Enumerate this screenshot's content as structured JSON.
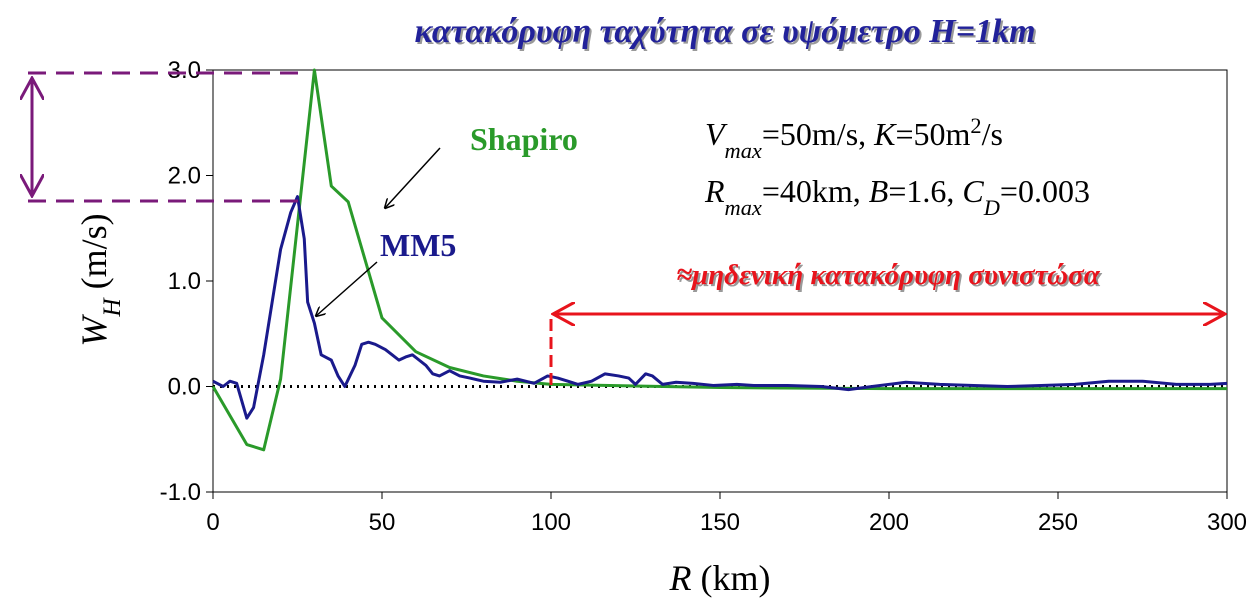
{
  "chart_data": {
    "type": "line",
    "title": "κατακόρυφη ταχύτητα σε υψόμετρο H=1km",
    "xlabel": [
      {
        "text": "R",
        "style": "italic"
      },
      {
        "text": " (km)",
        "style": "normal"
      }
    ],
    "ylabel": [
      {
        "text": "W",
        "style": "italic"
      },
      {
        "text": "H",
        "style": "sub-italic"
      },
      {
        "text": " (m/s)",
        "style": "normal"
      }
    ],
    "xlim": [
      0,
      300
    ],
    "ylim": [
      -1.0,
      3.0
    ],
    "xticks": [
      0,
      50,
      100,
      150,
      200,
      250,
      300
    ],
    "yticks": [
      {
        "value": -1,
        "label": "-1.0"
      },
      {
        "value": 0,
        "label": "0.0"
      },
      {
        "value": 1,
        "label": "1.0"
      },
      {
        "value": 2,
        "label": "2.0"
      },
      {
        "value": 3,
        "label": "3.0"
      }
    ],
    "reference_line": 0,
    "series": [
      {
        "name": "Shapiro",
        "color": "#2a9a2a",
        "x": [
          0,
          10,
          15,
          20,
          30,
          35,
          40,
          50,
          60,
          70,
          80,
          90,
          100,
          150,
          200,
          250,
          300
        ],
        "values": [
          0,
          -0.55,
          -0.6,
          0.07,
          3.0,
          1.9,
          1.75,
          0.65,
          0.33,
          0.18,
          0.1,
          0.05,
          0.02,
          -0.01,
          -0.02,
          -0.02,
          -0.02
        ]
      },
      {
        "name": "MM5",
        "color": "#1a1a8c",
        "x": [
          0,
          3,
          5,
          7,
          10,
          12,
          15,
          18,
          20,
          23,
          25,
          27,
          28,
          30,
          32,
          35,
          37,
          39,
          42,
          44,
          46,
          48,
          51,
          53,
          55,
          57,
          59,
          61,
          63,
          65,
          67,
          70,
          73,
          76,
          80,
          85,
          90,
          95,
          99,
          102,
          105,
          108,
          112,
          116,
          120,
          123,
          125,
          128,
          130,
          133,
          137,
          142,
          148,
          155,
          160,
          170,
          180,
          188,
          195,
          205,
          215,
          225,
          235,
          245,
          255,
          265,
          275,
          285,
          295,
          300
        ],
        "values": [
          0.05,
          0.0,
          0.05,
          0.03,
          -0.3,
          -0.2,
          0.3,
          0.9,
          1.3,
          1.65,
          1.8,
          1.4,
          0.8,
          0.6,
          0.3,
          0.25,
          0.1,
          0.0,
          0.2,
          0.4,
          0.42,
          0.4,
          0.35,
          0.3,
          0.25,
          0.28,
          0.3,
          0.25,
          0.2,
          0.12,
          0.1,
          0.15,
          0.1,
          0.08,
          0.05,
          0.04,
          0.07,
          0.03,
          0.1,
          0.08,
          0.05,
          0.02,
          0.05,
          0.12,
          0.1,
          0.08,
          0.02,
          0.12,
          0.1,
          0.02,
          0.04,
          0.03,
          0.01,
          0.02,
          0.01,
          0.01,
          0.0,
          -0.03,
          0.0,
          0.04,
          0.02,
          0.01,
          0.0,
          0.01,
          0.02,
          0.05,
          0.05,
          0.02,
          0.02,
          0.03
        ]
      }
    ],
    "annotations": {
      "params": [
        [
          {
            "text": "V",
            "style": "italic"
          },
          {
            "text": "max",
            "style": "sub-italic"
          },
          {
            "text": "=50m/s, ",
            "style": "normal"
          },
          {
            "text": "K",
            "style": "italic"
          },
          {
            "text": "=50m",
            "style": "normal"
          },
          {
            "text": "2",
            "style": "sup"
          },
          {
            "text": "/s",
            "style": "normal"
          }
        ],
        [
          {
            "text": "R",
            "style": "italic"
          },
          {
            "text": "max",
            "style": "sub-italic"
          },
          {
            "text": "=40km, ",
            "style": "normal"
          },
          {
            "text": "B",
            "style": "italic"
          },
          {
            "text": "=1.6, ",
            "style": "normal"
          },
          {
            "text": "C",
            "style": "italic"
          },
          {
            "text": "D",
            "style": "sub-italic"
          },
          {
            "text": "=0.003",
            "style": "normal"
          }
        ]
      ],
      "zero_region": "≈μηδενική κατακόρυφη συνιστώσα"
    }
  }
}
